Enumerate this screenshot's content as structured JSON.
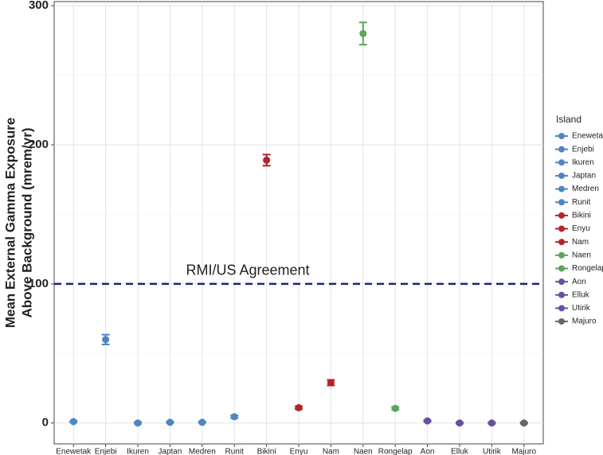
{
  "chart_data": {
    "type": "dotplot",
    "ylabel": [
      "Mean External Gamma Exposure",
      "Above Background (mrem/yr)"
    ],
    "categories": [
      "Enewetak",
      "Enjebi",
      "Ikuren",
      "Japtan",
      "Medren",
      "Runit",
      "Bikini",
      "Enyu",
      "Nam",
      "Naen",
      "Rongelap",
      "Aon",
      "Elluk",
      "Utirik",
      "Majuro"
    ],
    "values": [
      1,
      60,
      0,
      0.5,
      0.5,
      4.5,
      189,
      11,
      29,
      280,
      10.5,
      1.5,
      0,
      0,
      0
    ],
    "errors": [
      0.5,
      3.5,
      0.5,
      0.5,
      0.5,
      1,
      4,
      1,
      2,
      8,
      1,
      0.5,
      0.5,
      0.5,
      0.5
    ],
    "colors": [
      "#4f86c0",
      "#4f86c0",
      "#4f86c0",
      "#4f86c0",
      "#4f86c0",
      "#4f86c0",
      "#b2242a",
      "#b2242a",
      "#b2242a",
      "#5aa65a",
      "#5aa65a",
      "#6a4fa0",
      "#6a4fa0",
      "#6a4fa0",
      "#666666"
    ],
    "legend_title": "Island",
    "reference_line": {
      "value": 100,
      "label": "RMI/US Agreement",
      "color": "#1a237e"
    },
    "ylim": [
      -15,
      303
    ],
    "yticks": [
      0,
      100,
      200,
      300
    ],
    "minor_yticks": [
      50,
      150,
      250
    ],
    "grid": true
  }
}
